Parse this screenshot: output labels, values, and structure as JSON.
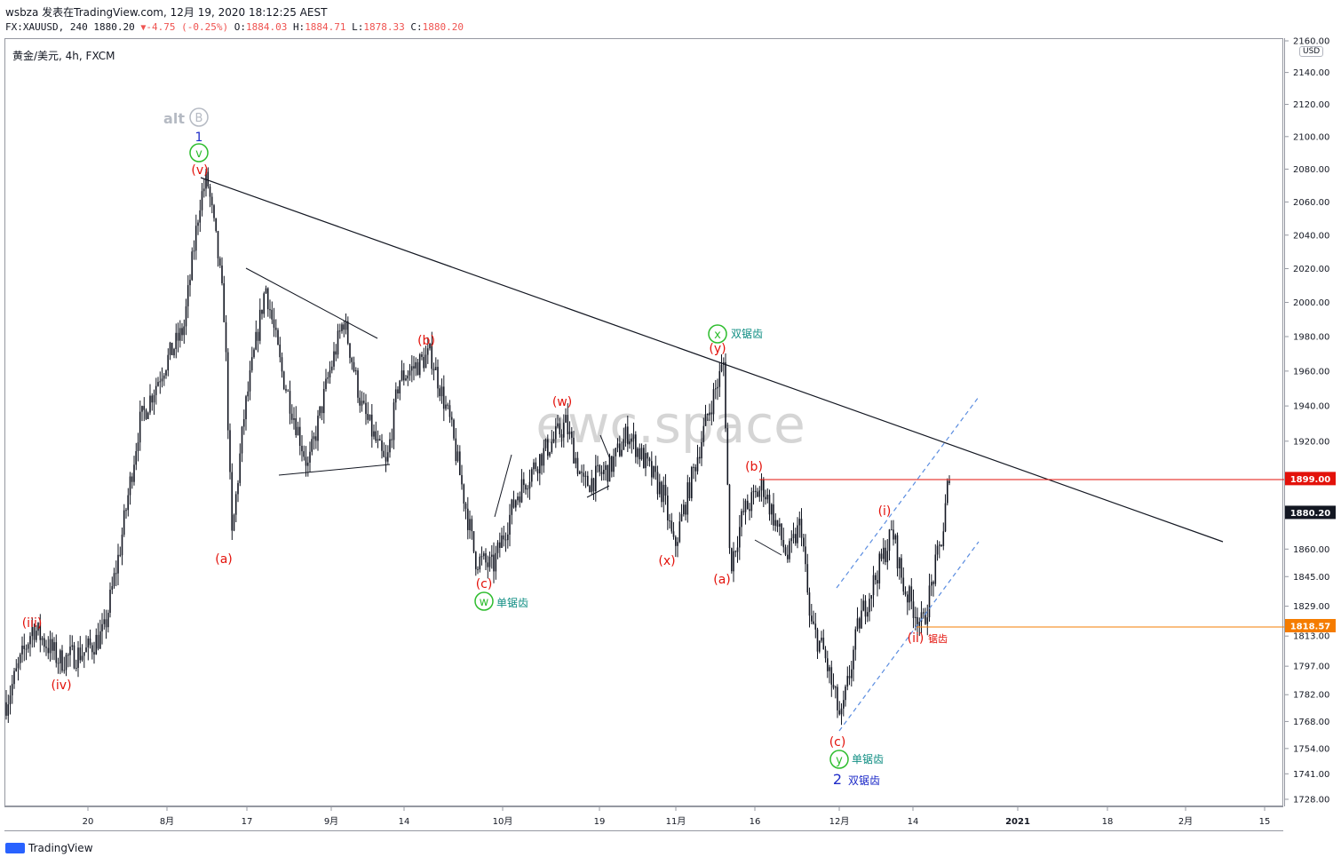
{
  "header": {
    "line1": "wsbza 发表在TradingView.com, 12月 19, 2020 18:12:25 AEST",
    "symbol_full": "FX:XAUUSD, 240",
    "last": "1880.20",
    "change": "-4.75 (-0.25%)",
    "ohlc_o_label": "O:",
    "ohlc_o": "1884.03",
    "ohlc_h_label": "H:",
    "ohlc_h": "1884.71",
    "ohlc_l_label": "L:",
    "ohlc_l": "1878.33",
    "ohlc_c_label": "C:",
    "ohlc_c": "1880.20"
  },
  "chart_title": "黄金/美元, 4h, FXCM",
  "currency_badge": "USD",
  "watermark": "ewc.space",
  "branding": "TradingView",
  "colors": {
    "candle": "#131722",
    "wave_red": "#e3120b",
    "wave_green": "#2ebd2e",
    "wave_blue": "#1e2bc8",
    "label_teal": "#128f84",
    "channel": "#5b8de0",
    "alt_gray": "#9aa0ab",
    "red_line": "#e3120b",
    "orange_line": "#f57c00"
  },
  "price_badges": [
    {
      "value": "1899.00",
      "color": "#e3120b"
    },
    {
      "value": "1880.20",
      "color": "#131722"
    },
    {
      "value": "1818.57",
      "color": "#f57c00"
    }
  ],
  "chart_data": {
    "type": "candlestick",
    "scale": "log",
    "y_ticks": [
      "2160.00",
      "2140.00",
      "2120.00",
      "2100.00",
      "2080.00",
      "2060.00",
      "2040.00",
      "2020.00",
      "2000.00",
      "1980.00",
      "1960.00",
      "1940.00",
      "1920.00",
      "1899.00",
      "1880.00",
      "1860.00",
      "1845.00",
      "1829.00",
      "1813.00",
      "1797.00",
      "1782.00",
      "1768.00",
      "1754.00",
      "1741.00",
      "1728.00"
    ],
    "x_ticks": [
      "20",
      "8月",
      "17",
      "9月",
      "14",
      "10月",
      "19",
      "11月",
      "16",
      "12月",
      "14",
      "2021",
      "18",
      "2月",
      "15"
    ],
    "path": [
      [
        0,
        1778
      ],
      [
        30,
        1818
      ],
      [
        60,
        1800
      ],
      [
        90,
        1805
      ],
      [
        110,
        1815
      ],
      [
        128,
        1860
      ],
      [
        150,
        1930
      ],
      [
        175,
        1960
      ],
      [
        200,
        1985
      ],
      [
        218,
        2060
      ],
      [
        226,
        2075
      ],
      [
        238,
        2030
      ],
      [
        246,
        1990
      ],
      [
        254,
        1865
      ],
      [
        268,
        1935
      ],
      [
        292,
        2010
      ],
      [
        310,
        1960
      ],
      [
        340,
        1905
      ],
      [
        362,
        1955
      ],
      [
        380,
        1990
      ],
      [
        400,
        1940
      ],
      [
        428,
        1905
      ],
      [
        442,
        1955
      ],
      [
        478,
        1970
      ],
      [
        500,
        1930
      ],
      [
        528,
        1855
      ],
      [
        548,
        1850
      ],
      [
        575,
        1890
      ],
      [
        600,
        1910
      ],
      [
        630,
        1930
      ],
      [
        650,
        1895
      ],
      [
        680,
        1905
      ],
      [
        700,
        1925
      ],
      [
        740,
        1890
      ],
      [
        752,
        1860
      ],
      [
        790,
        1935
      ],
      [
        808,
        1965
      ],
      [
        815,
        1850
      ],
      [
        830,
        1880
      ],
      [
        852,
        1895
      ],
      [
        880,
        1855
      ],
      [
        895,
        1875
      ],
      [
        905,
        1820
      ],
      [
        920,
        1805
      ],
      [
        940,
        1768
      ],
      [
        960,
        1820
      ],
      [
        998,
        1870
      ],
      [
        1010,
        1840
      ],
      [
        1032,
        1818
      ],
      [
        1055,
        1870
      ],
      [
        1060,
        1895
      ],
      [
        1070,
        1880
      ]
    ],
    "annotations": {
      "alt": "alt",
      "alt_circle": "B",
      "wave_1": "1",
      "circ_v": "v",
      "v_red": "(v)",
      "iii": "(iii)",
      "iv": "(iv)",
      "a1": "(a)",
      "b1": "(b)",
      "c1": "(c)",
      "w_red": "(w)",
      "w_circle": "w",
      "w_label": "单锯齿",
      "x_red": "(x)",
      "x_circle": "x",
      "x_label": "双锯齿",
      "y_red": "(y)",
      "a2": "(a)",
      "b2": "(b)",
      "c2": "(c)",
      "y_circle": "y",
      "y_label": "单锯齿",
      "wave_2": "2",
      "wave_2_label": "双锯齿",
      "i": "(i)",
      "ii": "(ii)",
      "ii_label": "锯齿"
    }
  }
}
